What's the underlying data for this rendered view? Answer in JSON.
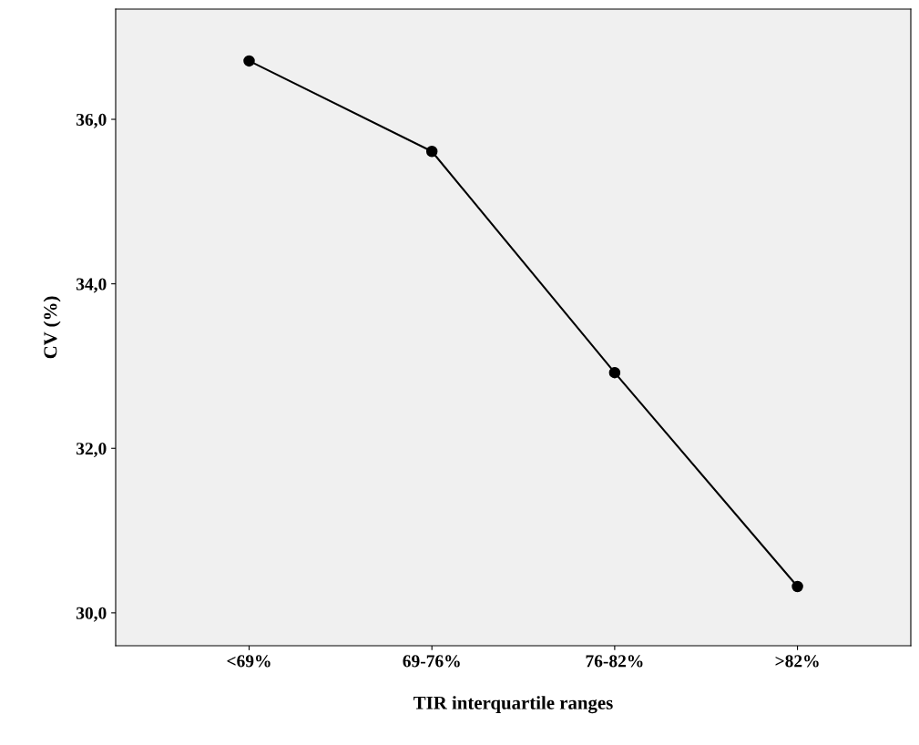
{
  "chart_data": {
    "type": "line",
    "xlabel": "TIR interquartile ranges",
    "ylabel": "CV (%)",
    "categories": [
      "<69%",
      "69-76%",
      "76-82%",
      ">82%"
    ],
    "series": [
      {
        "color": "#000000",
        "values": [
          36.71,
          35.61,
          32.92,
          30.32
        ]
      }
    ],
    "ylim": [
      29.6,
      37.34
    ],
    "yticks": [
      {
        "value": 30,
        "label": "30,0"
      },
      {
        "value": 32,
        "label": "32,0"
      },
      {
        "value": 34,
        "label": "34,0"
      },
      {
        "value": 36,
        "label": "36,0"
      }
    ],
    "marker": "circle",
    "line_style": "solid",
    "grid": false,
    "legend": false
  }
}
